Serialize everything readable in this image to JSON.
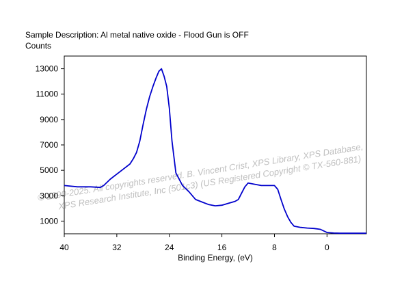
{
  "chart_data": {
    "type": "line",
    "title": "Sample Description:  Al metal native oxide - Flood Gun is OFF",
    "ylabel": "Counts",
    "xlabel": "Binding Energy, (eV)",
    "xlim": [
      40,
      -6
    ],
    "ylim": [
      0,
      14000
    ],
    "x_ticks": [
      40,
      32,
      24,
      16,
      8,
      0
    ],
    "y_ticks": [
      1000,
      3000,
      5000,
      7000,
      9000,
      11000,
      13000
    ],
    "grid": false,
    "series": [
      {
        "color": "#0000cc",
        "x": [
          40,
          38,
          36,
          34.5,
          34,
          33,
          32,
          31,
          30,
          29.5,
          29,
          28.5,
          28,
          27.5,
          27,
          26.5,
          26,
          25.6,
          25.2,
          25,
          24.8,
          24.4,
          24,
          23.6,
          23,
          22,
          21,
          20,
          19,
          18,
          17,
          16,
          15,
          14,
          13.5,
          13,
          12.5,
          12,
          11,
          10,
          9,
          8,
          7.5,
          7,
          6.5,
          6,
          5.5,
          5,
          4,
          3,
          2,
          1,
          0,
          -1,
          -2,
          -4,
          -6
        ],
        "y": [
          3800,
          3700,
          3700,
          3650,
          3800,
          4300,
          4700,
          5100,
          5500,
          5900,
          6400,
          7300,
          8600,
          9800,
          10800,
          11600,
          12300,
          12800,
          13000,
          12700,
          12400,
          11600,
          9900,
          7300,
          4800,
          3800,
          3300,
          2700,
          2500,
          2300,
          2200,
          2250,
          2400,
          2550,
          2700,
          3200,
          3700,
          4000,
          3900,
          3800,
          3800,
          3800,
          3500,
          2700,
          1950,
          1350,
          900,
          600,
          500,
          450,
          420,
          350,
          100,
          60,
          50,
          50,
          50
        ]
      }
    ]
  },
  "watermark": {
    "line1": "© 1990-2025.  All copyrights reserved.    B. Vincent Crist,  XPS Library, XPS Database,",
    "line2": "XPS Research Institute, Inc (501c3)   (US Registered Copyright © TX-560-881)"
  }
}
